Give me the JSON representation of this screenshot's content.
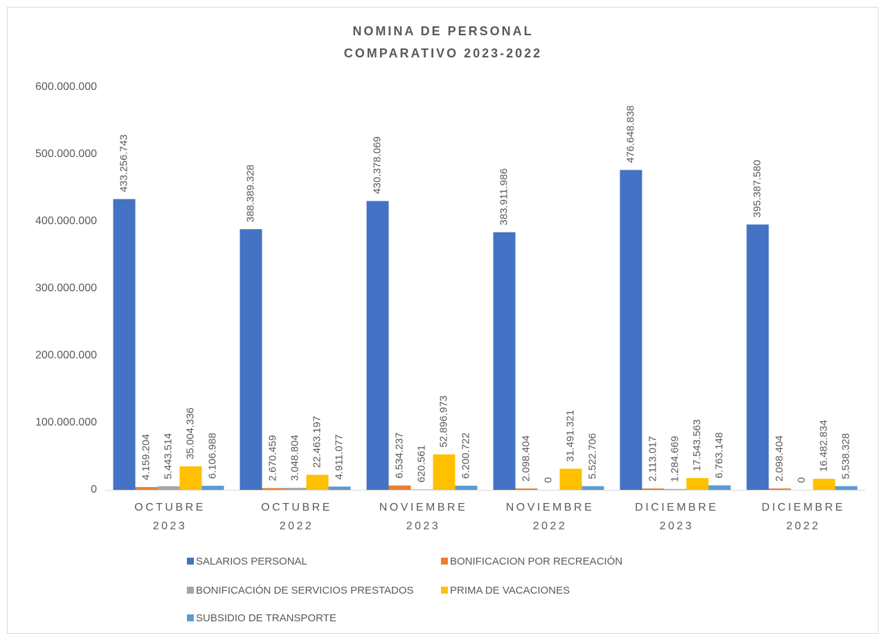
{
  "chart_data": {
    "type": "bar",
    "title": "NOMINA DE PERSONAL",
    "subtitle": "COMPARATIVO 2023-2022",
    "categories": [
      "OCTUBRE 2023",
      "OCTUBRE 2022",
      "NOVIEMBRE 2023",
      "NOVIEMBRE 2022",
      "DICIEMBRE 2023",
      "DICIEMBRE 2022"
    ],
    "series": [
      {
        "name": "SALARIOS PERSONAL",
        "color": "#4472c4",
        "values": [
          433256743,
          388389328,
          430378069,
          383911986,
          476648838,
          395387580
        ],
        "value_labels": [
          "433.256.743",
          "388.389.328",
          "430.378.069",
          "383.911.986",
          "476.648.838",
          "395.387.580"
        ]
      },
      {
        "name": "BONIFICACION POR RECREACIÓN",
        "color": "#ed7d31",
        "values": [
          4159204,
          2670459,
          6534237,
          2098404,
          2113017,
          2098404
        ],
        "value_labels": [
          "4.159.204",
          "2.670.459",
          "6.534.237",
          "2.098.404",
          "2.113.017",
          "2.098.404"
        ]
      },
      {
        "name": "BONIFICACIÓN DE SERVICIOS PRESTADOS",
        "color": "#a5a5a5",
        "values": [
          5443514,
          3048804,
          620561,
          0,
          1284669,
          0
        ],
        "value_labels": [
          "5.443.514",
          "3.048.804",
          "620.561",
          "0",
          "1.284.669",
          "0"
        ]
      },
      {
        "name": "PRIMA DE VACACIONES",
        "color": "#ffc000",
        "values": [
          35004336,
          22463197,
          52896973,
          31491321,
          17543563,
          16482834
        ],
        "value_labels": [
          "35.004.336",
          "22.463.197",
          "52.896.973",
          "31.491.321",
          "17.543.563",
          "16.482.834"
        ]
      },
      {
        "name": "SUBSIDIO DE TRANSPORTE",
        "color": "#5b9bd5",
        "values": [
          6106988,
          4911077,
          6200722,
          5522706,
          6763148,
          5538328
        ],
        "value_labels": [
          "6.106.988",
          "4.911.077",
          "6.200.722",
          "5.522.706",
          "6.763.148",
          "5.538.328"
        ]
      }
    ],
    "ylim": [
      0,
      600000000
    ],
    "yticks": [
      0,
      {
        "value": 100000000,
        "label": "100.000.000"
      },
      {
        "value": 200000000,
        "label": "200.000.000"
      },
      {
        "value": 300000000,
        "label": "300.000.000"
      },
      {
        "value": 400000000,
        "label": "400.000.000"
      },
      {
        "value": 500000000,
        "label": "500.000.000"
      },
      {
        "value": 600000000,
        "label": "600.000.000"
      }
    ],
    "grid": false,
    "legend": "bottom"
  }
}
